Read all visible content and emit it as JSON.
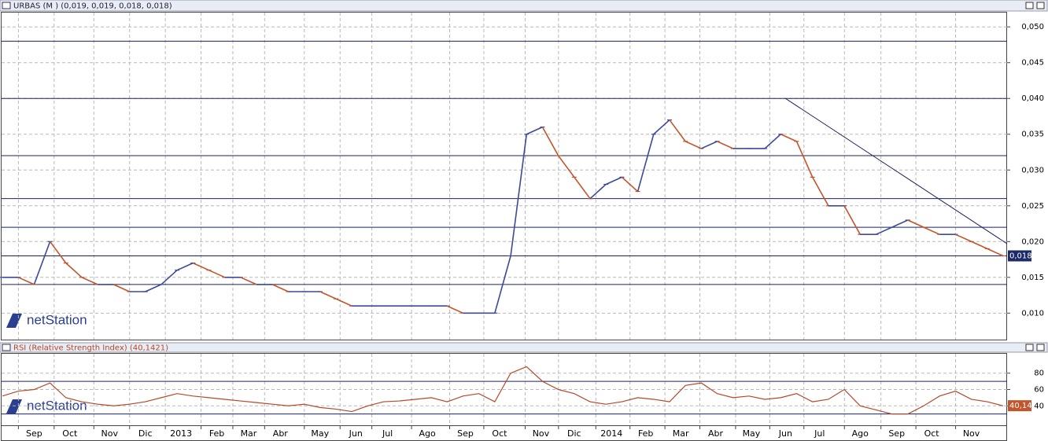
{
  "logo": "netStation",
  "chart_data": [
    {
      "type": "line",
      "title": "URBAS (M ) (0,019, 0,019, 0,018, 0,018)",
      "x": [
        0,
        2,
        4,
        6,
        8,
        10,
        12,
        14,
        16,
        18,
        20,
        22,
        24,
        26,
        28,
        30,
        32,
        34,
        36,
        38,
        40,
        42,
        44,
        46,
        48,
        50,
        52,
        54,
        56,
        58,
        60,
        62,
        64,
        66,
        68,
        70,
        72,
        74,
        76,
        78,
        80,
        82,
        84,
        86,
        88,
        90,
        92,
        94,
        96,
        98,
        100,
        102,
        104,
        106,
        108,
        110,
        112,
        114,
        116,
        118,
        120,
        122,
        124,
        126
      ],
      "series": [
        {
          "name": "URBAS",
          "up_color": "#3b4a9c",
          "down_color": "#c4552a",
          "values": [
            0.015,
            0.015,
            0.014,
            0.02,
            0.017,
            0.015,
            0.014,
            0.014,
            0.013,
            0.013,
            0.014,
            0.016,
            0.017,
            0.016,
            0.015,
            0.015,
            0.014,
            0.014,
            0.013,
            0.013,
            0.013,
            0.012,
            0.011,
            0.011,
            0.011,
            0.011,
            0.011,
            0.011,
            0.011,
            0.01,
            0.01,
            0.01,
            0.018,
            0.035,
            0.036,
            0.032,
            0.029,
            0.026,
            0.028,
            0.029,
            0.027,
            0.035,
            0.037,
            0.034,
            0.033,
            0.034,
            0.033,
            0.033,
            0.033,
            0.035,
            0.034,
            0.029,
            0.025,
            0.025,
            0.021,
            0.021,
            0.022,
            0.023,
            0.022,
            0.021,
            0.021,
            0.02,
            0.019,
            0.018
          ]
        }
      ],
      "xlim": [
        -0.1,
        126.5
      ],
      "ylim": [
        0.0063,
        0.052
      ],
      "yticks": [
        {
          "value": 0.01,
          "label": "0,010"
        },
        {
          "value": 0.015,
          "label": "0,015"
        },
        {
          "value": 0.02,
          "label": "0,020"
        },
        {
          "value": 0.025,
          "label": "0,025"
        },
        {
          "value": 0.03,
          "label": "0,030"
        },
        {
          "value": 0.035,
          "label": "0,035"
        },
        {
          "value": 0.04,
          "label": "0,040"
        },
        {
          "value": 0.045,
          "label": "0,045"
        },
        {
          "value": 0.05,
          "label": "0,050"
        }
      ],
      "hlines": [
        0.048,
        0.04,
        0.032,
        0.026,
        0.022,
        0.018,
        0.014
      ],
      "trendline": {
        "x": [
          98.6,
          126.5
        ],
        "y": [
          0.04,
          0.0197
        ]
      },
      "last_value": {
        "value": 0.018,
        "label": "0,018"
      },
      "grid": true
    },
    {
      "type": "line",
      "title": "RSI (Relative Strength Index) (40,1421)",
      "x": [
        0,
        2,
        4,
        6,
        8,
        10,
        12,
        14,
        16,
        18,
        20,
        22,
        24,
        26,
        28,
        30,
        32,
        34,
        36,
        38,
        40,
        42,
        44,
        46,
        48,
        50,
        52,
        54,
        56,
        58,
        60,
        62,
        64,
        66,
        68,
        70,
        72,
        74,
        76,
        78,
        80,
        82,
        84,
        86,
        88,
        90,
        92,
        94,
        96,
        98,
        100,
        102,
        104,
        106,
        108,
        110,
        112,
        114,
        116,
        118,
        120,
        122,
        124,
        126
      ],
      "series": [
        {
          "name": "RSI",
          "color": "#b5482a",
          "values": [
            52,
            58,
            60,
            68,
            50,
            45,
            42,
            40,
            42,
            45,
            50,
            55,
            52,
            50,
            48,
            46,
            44,
            42,
            40,
            42,
            38,
            36,
            33,
            40,
            45,
            46,
            48,
            50,
            45,
            52,
            55,
            45,
            80,
            88,
            70,
            60,
            55,
            45,
            42,
            45,
            50,
            48,
            45,
            65,
            68,
            55,
            50,
            52,
            48,
            50,
            55,
            45,
            48,
            60,
            40,
            35,
            30,
            30,
            40,
            52,
            58,
            48,
            45,
            40
          ]
        }
      ],
      "xlim": [
        -0.1,
        126.5
      ],
      "ylim": [
        16.2,
        103.8
      ],
      "yticks": [
        40,
        60,
        80
      ],
      "hlines": [
        70,
        30
      ],
      "last_value": {
        "value": 40.14,
        "label": "40,14"
      },
      "xticks": [
        {
          "value": 4,
          "label": "Sep"
        },
        {
          "value": 8.5,
          "label": "Oct"
        },
        {
          "value": 13.5,
          "label": "Nov"
        },
        {
          "value": 18,
          "label": "Dic"
        },
        {
          "value": 22.5,
          "label": "2013"
        },
        {
          "value": 27,
          "label": "Feb"
        },
        {
          "value": 31,
          "label": "Mar"
        },
        {
          "value": 35,
          "label": "Abr"
        },
        {
          "value": 40,
          "label": "May"
        },
        {
          "value": 44.5,
          "label": "Jun"
        },
        {
          "value": 48.5,
          "label": "Jul"
        },
        {
          "value": 53.5,
          "label": "Ago"
        },
        {
          "value": 58.3,
          "label": "Sep"
        },
        {
          "value": 62.6,
          "label": "Oct"
        },
        {
          "value": 67.8,
          "label": "Nov"
        },
        {
          "value": 72,
          "label": "Dic"
        },
        {
          "value": 76.7,
          "label": "2014"
        },
        {
          "value": 81,
          "label": "Feb"
        },
        {
          "value": 85.4,
          "label": "Mar"
        },
        {
          "value": 89.8,
          "label": "Abr"
        },
        {
          "value": 94.3,
          "label": "May"
        },
        {
          "value": 98.6,
          "label": "Jun"
        },
        {
          "value": 102.9,
          "label": "Jul"
        },
        {
          "value": 108,
          "label": "Ago"
        },
        {
          "value": 112.6,
          "label": "Sep"
        },
        {
          "value": 117,
          "label": "Oct"
        },
        {
          "value": 122,
          "label": "Nov"
        }
      ],
      "grid": true
    }
  ]
}
